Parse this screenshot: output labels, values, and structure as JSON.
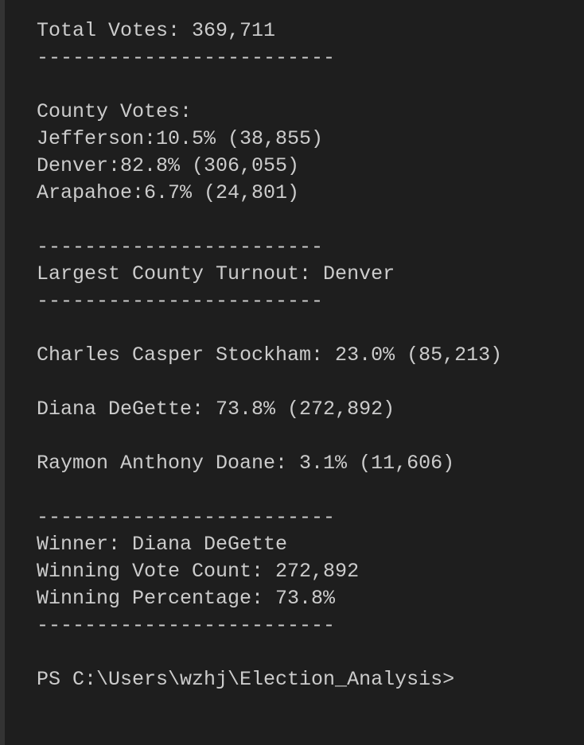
{
  "terminal": {
    "blocks": [
      [
        "Total Votes: 369,711",
        "-------------------------"
      ],
      [
        "County Votes:",
        "Jefferson:10.5% (38,855)",
        "Denver:82.8% (306,055)",
        "Arapahoe:6.7% (24,801)"
      ],
      [
        "------------------------",
        "Largest County Turnout: Denver",
        "------------------------"
      ],
      [
        "Charles Casper Stockham: 23.0% (85,213)"
      ],
      [
        "Diana DeGette: 73.8% (272,892)"
      ],
      [
        "Raymon Anthony Doane: 3.1% (11,606)"
      ],
      [
        "-------------------------",
        "Winner: Diana DeGette",
        "Winning Vote Count: 272,892",
        "Winning Percentage: 73.8%",
        "-------------------------"
      ],
      [
        "PS C:\\Users\\wzhj\\Election_Analysis>"
      ]
    ]
  }
}
